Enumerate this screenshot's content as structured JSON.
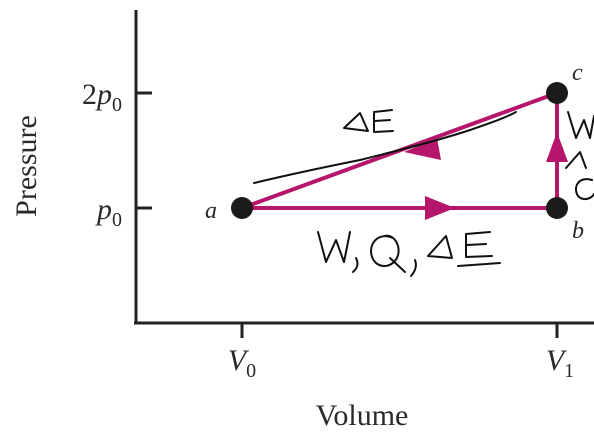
{
  "diagram": {
    "axes": {
      "ylabel": "Pressure",
      "xlabel": "Volume",
      "yticks": [
        {
          "main": "2",
          "var": "p",
          "sub": "0",
          "value": 2
        },
        {
          "main": "",
          "var": "p",
          "sub": "0",
          "value": 1
        }
      ],
      "xticks": [
        {
          "var": "V",
          "sub": "0"
        },
        {
          "var": "V",
          "sub": "1"
        }
      ]
    },
    "points": [
      {
        "id": "a",
        "label": "a"
      },
      {
        "id": "b",
        "label": "b"
      },
      {
        "id": "c",
        "label": "c"
      }
    ],
    "path_color": "#b5166b",
    "handwriting": {
      "upper_note": "ΔE",
      "lower_note": "W, Q, ΔE",
      "right_note": "W"
    }
  }
}
